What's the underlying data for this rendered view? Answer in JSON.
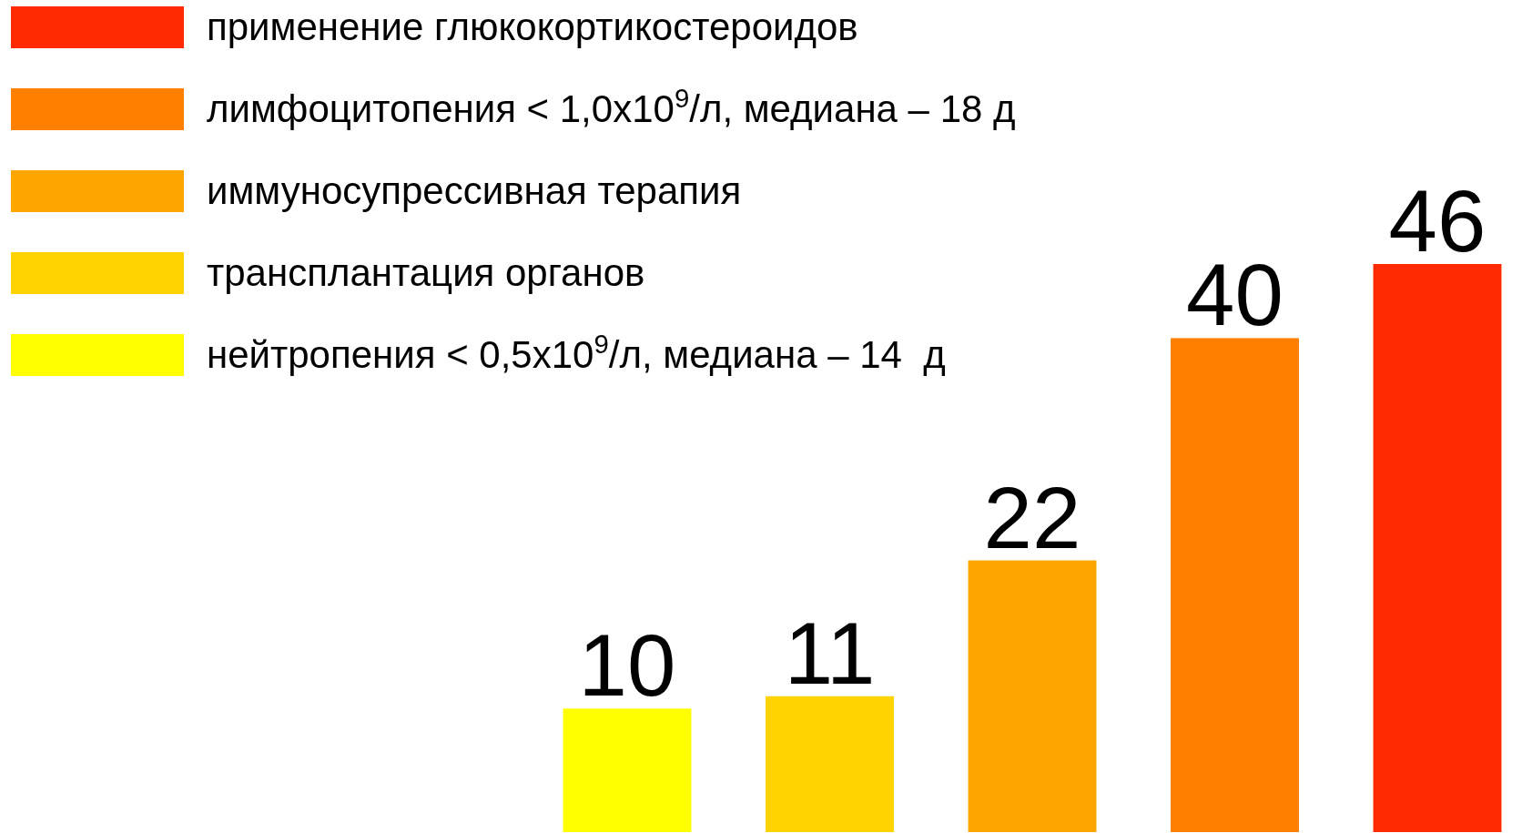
{
  "chart_data": {
    "type": "bar",
    "stacked": true,
    "categories": [
      null,
      null,
      null,
      null,
      null
    ],
    "data_labels": true,
    "legend": "top left",
    "series": [
      {
        "name": "нейтропения < 0,5х10$^{9}$/л, медиана – 14  д",
        "color": "#ffff00",
        "values": [
          10,
          null,
          null,
          null,
          null
        ]
      },
      {
        "name": "трансплантация органов",
        "color": "#ffd200",
        "values": [
          null,
          11,
          null,
          null,
          null
        ]
      },
      {
        "name": "иммуносупрессивная терапия",
        "color": "#ffa500",
        "values": [
          null,
          null,
          22,
          null,
          null
        ]
      },
      {
        "name": "лимфоцитопения < 1,0х10$^{9}$/л, медиана – 18 д",
        "color": "#ff7f00",
        "values": [
          null,
          null,
          null,
          40,
          null
        ]
      },
      {
        "name": "применение глюкокортикостероидов",
        "color": "#ff2a00",
        "values": [
          null,
          null,
          null,
          null,
          46
        ]
      }
    ]
  }
}
